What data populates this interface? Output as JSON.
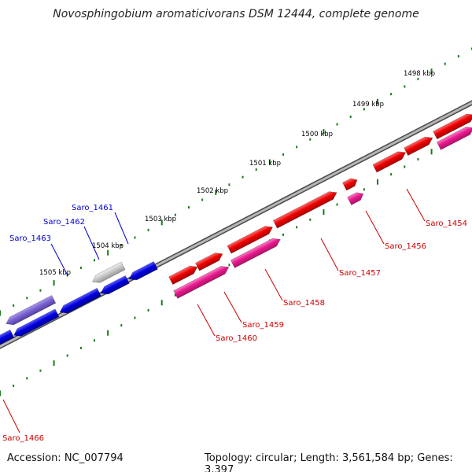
{
  "title": "Novosphingobium aromaticivorans DSM 12444, complete genome",
  "footer": {
    "accession": "Accession: NC_007794",
    "topology": "Topology: circular; Length: 3,561,584 bp; Genes: 3,397"
  },
  "colors": {
    "forward_gene": "#ee0000",
    "forward_gene_alt": "#e6198c",
    "reverse_gene": "#0000dd",
    "reverse_gene_alt": "#7a62d0",
    "pseudo_gene": "#c8c8c8",
    "label_forward": "#cc0000",
    "label_reverse": "#0000cc",
    "backbone": "#8a8a8a",
    "tick": "#1a7a1a"
  },
  "ruler": [
    {
      "label": "1498 kbp"
    },
    {
      "label": "1499 kbp"
    },
    {
      "label": "1500 kbp"
    },
    {
      "label": "1501 kbp"
    },
    {
      "label": "1502 kbp"
    },
    {
      "label": "1503 kbp"
    },
    {
      "label": "1504 kbp"
    },
    {
      "label": "1505 kbp"
    }
  ],
  "genes": [
    {
      "name": "Saro_1454",
      "strand": "forward"
    },
    {
      "name": "Saro_1456",
      "strand": "forward"
    },
    {
      "name": "Saro_1457",
      "strand": "forward"
    },
    {
      "name": "Saro_1458",
      "strand": "forward"
    },
    {
      "name": "Saro_1459",
      "strand": "forward"
    },
    {
      "name": "Saro_1460",
      "strand": "forward"
    },
    {
      "name": "Saro_1461",
      "strand": "reverse"
    },
    {
      "name": "Saro_1462",
      "strand": "reverse"
    },
    {
      "name": "Saro_1463",
      "strand": "reverse"
    },
    {
      "name": "Saro_1466",
      "strand": "forward"
    }
  ]
}
